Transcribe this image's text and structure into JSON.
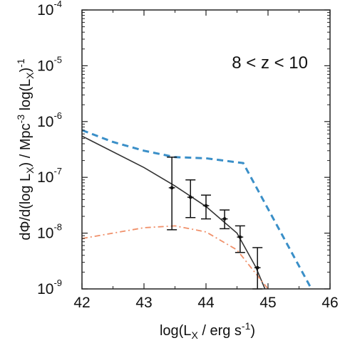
{
  "chart_data": {
    "type": "line",
    "annotation": "8 < z < 10",
    "xlabel": {
      "pre": "log(L",
      "sub": "X",
      "post": " / erg s",
      "sup": "-1",
      "end": ")"
    },
    "ylabel": {
      "a": "dΦ/d(log L",
      "a_sub": "X",
      "b": ") / Mpc",
      "b_sup": "-3",
      "c": " log(L",
      "c_sub": "X",
      "d": ")",
      "d_sup": "-1"
    },
    "xlim": [
      42,
      46
    ],
    "ylim_log10": [
      -9,
      -4
    ],
    "y_scale": "log",
    "x_ticks": [
      "42",
      "43",
      "44",
      "45",
      "46"
    ],
    "y_ticks": [
      {
        "base": "10",
        "exp": "-4"
      },
      {
        "base": "10",
        "exp": "-5"
      },
      {
        "base": "10",
        "exp": "-6"
      },
      {
        "base": "10",
        "exp": "-7"
      },
      {
        "base": "10",
        "exp": "-8"
      },
      {
        "base": "10",
        "exp": "-9"
      }
    ],
    "series": [
      {
        "style": "solid",
        "color": "#333333",
        "x": [
          42.0,
          43.0,
          43.5,
          44.0,
          44.5,
          44.8,
          44.95
        ],
        "y": [
          5.5e-07,
          1.5e-07,
          7e-08,
          3e-08,
          1e-08,
          2.5e-09,
          1e-09
        ]
      },
      {
        "style": "dashed",
        "color": "#3a8fc8",
        "x": [
          42.0,
          42.5,
          43.0,
          43.5,
          44.0,
          44.6,
          45.7
        ],
        "y": [
          7e-07,
          4.3e-07,
          3e-07,
          2.3e-07,
          2.2e-07,
          1.8e-07,
          1e-09
        ]
      },
      {
        "style": "dash-dot",
        "color": "#f0906a",
        "x": [
          42.0,
          43.0,
          43.5,
          44.0,
          44.5,
          45.0
        ],
        "y": [
          8e-09,
          1.25e-08,
          1.35e-08,
          1.05e-08,
          5e-09,
          1e-09
        ]
      }
    ],
    "points": [
      {
        "x": 43.45,
        "y": 6.5e-08,
        "ylo": 1.15e-08,
        "yhi": 2.3e-07,
        "xerr": 0.05
      },
      {
        "x": 43.75,
        "y": 4.4e-08,
        "ylo": 1.9e-08,
        "yhi": 9e-08,
        "xerr": 0.05
      },
      {
        "x": 44.0,
        "y": 3.1e-08,
        "ylo": 1.8e-08,
        "yhi": 4.8e-08,
        "xerr": 0.05
      },
      {
        "x": 44.3,
        "y": 1.8e-08,
        "ylo": 1.2e-08,
        "yhi": 2.6e-08,
        "xerr": 0.05
      },
      {
        "x": 44.55,
        "y": 8.5e-09,
        "ylo": 4.5e-09,
        "yhi": 1.35e-08,
        "xerr": 0.05
      },
      {
        "x": 44.83,
        "y": 2.4e-09,
        "ylo": 1e-09,
        "yhi": 5.5e-09,
        "xerr": 0.05
      }
    ],
    "grid": false
  }
}
